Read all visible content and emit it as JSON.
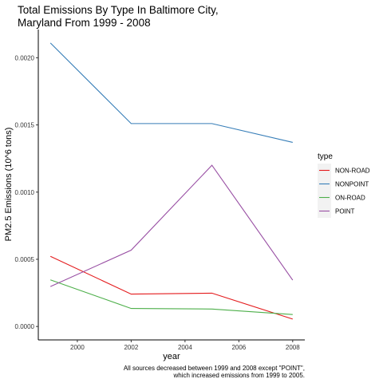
{
  "chart_data": {
    "type": "line",
    "title_lines": [
      "Total Emissions By Type In Baltimore City,",
      "Maryland From 1999 - 2008"
    ],
    "xlabel": "year",
    "ylabel": "PM2.5 Emissions (10^6 tons)",
    "x": [
      1999,
      2002,
      2005,
      2008
    ],
    "xlim": [
      1998.55,
      2008.45
    ],
    "ylim": [
      -0.0001,
      0.00221
    ],
    "x_ticks": [
      2000,
      2002,
      2004,
      2006,
      2008
    ],
    "x_tick_labels": [
      "2000",
      "2002",
      "2004",
      "2006",
      "2008"
    ],
    "y_ticks": [
      0,
      0.0005,
      0.001,
      0.0015,
      0.002
    ],
    "y_tick_labels": [
      "0.0000",
      "0.0005",
      "0.0010",
      "0.0015",
      "0.0020"
    ],
    "grid": false,
    "legend": {
      "title": "type",
      "position": "right"
    },
    "series": [
      {
        "name": "NON-ROAD",
        "color": "#e41a1c",
        "values": [
          0.000522,
          0.000241,
          0.000248,
          5.5e-05
        ]
      },
      {
        "name": "NONPOINT",
        "color": "#377eb8",
        "values": [
          0.00211,
          0.00151,
          0.00151,
          0.00137
        ]
      },
      {
        "name": "ON-ROAD",
        "color": "#4daf4a",
        "values": [
          0.000347,
          0.000134,
          0.00013,
          8.9e-05
        ]
      },
      {
        "name": "POINT",
        "color": "#984ea3",
        "values": [
          0.000297,
          0.000568,
          0.0012,
          0.000345
        ]
      }
    ],
    "caption_lines": [
      "All sources decreased between 1999 and 2008 except \"POINT\",",
      "which increased emissions from 1999 to 2005."
    ]
  }
}
